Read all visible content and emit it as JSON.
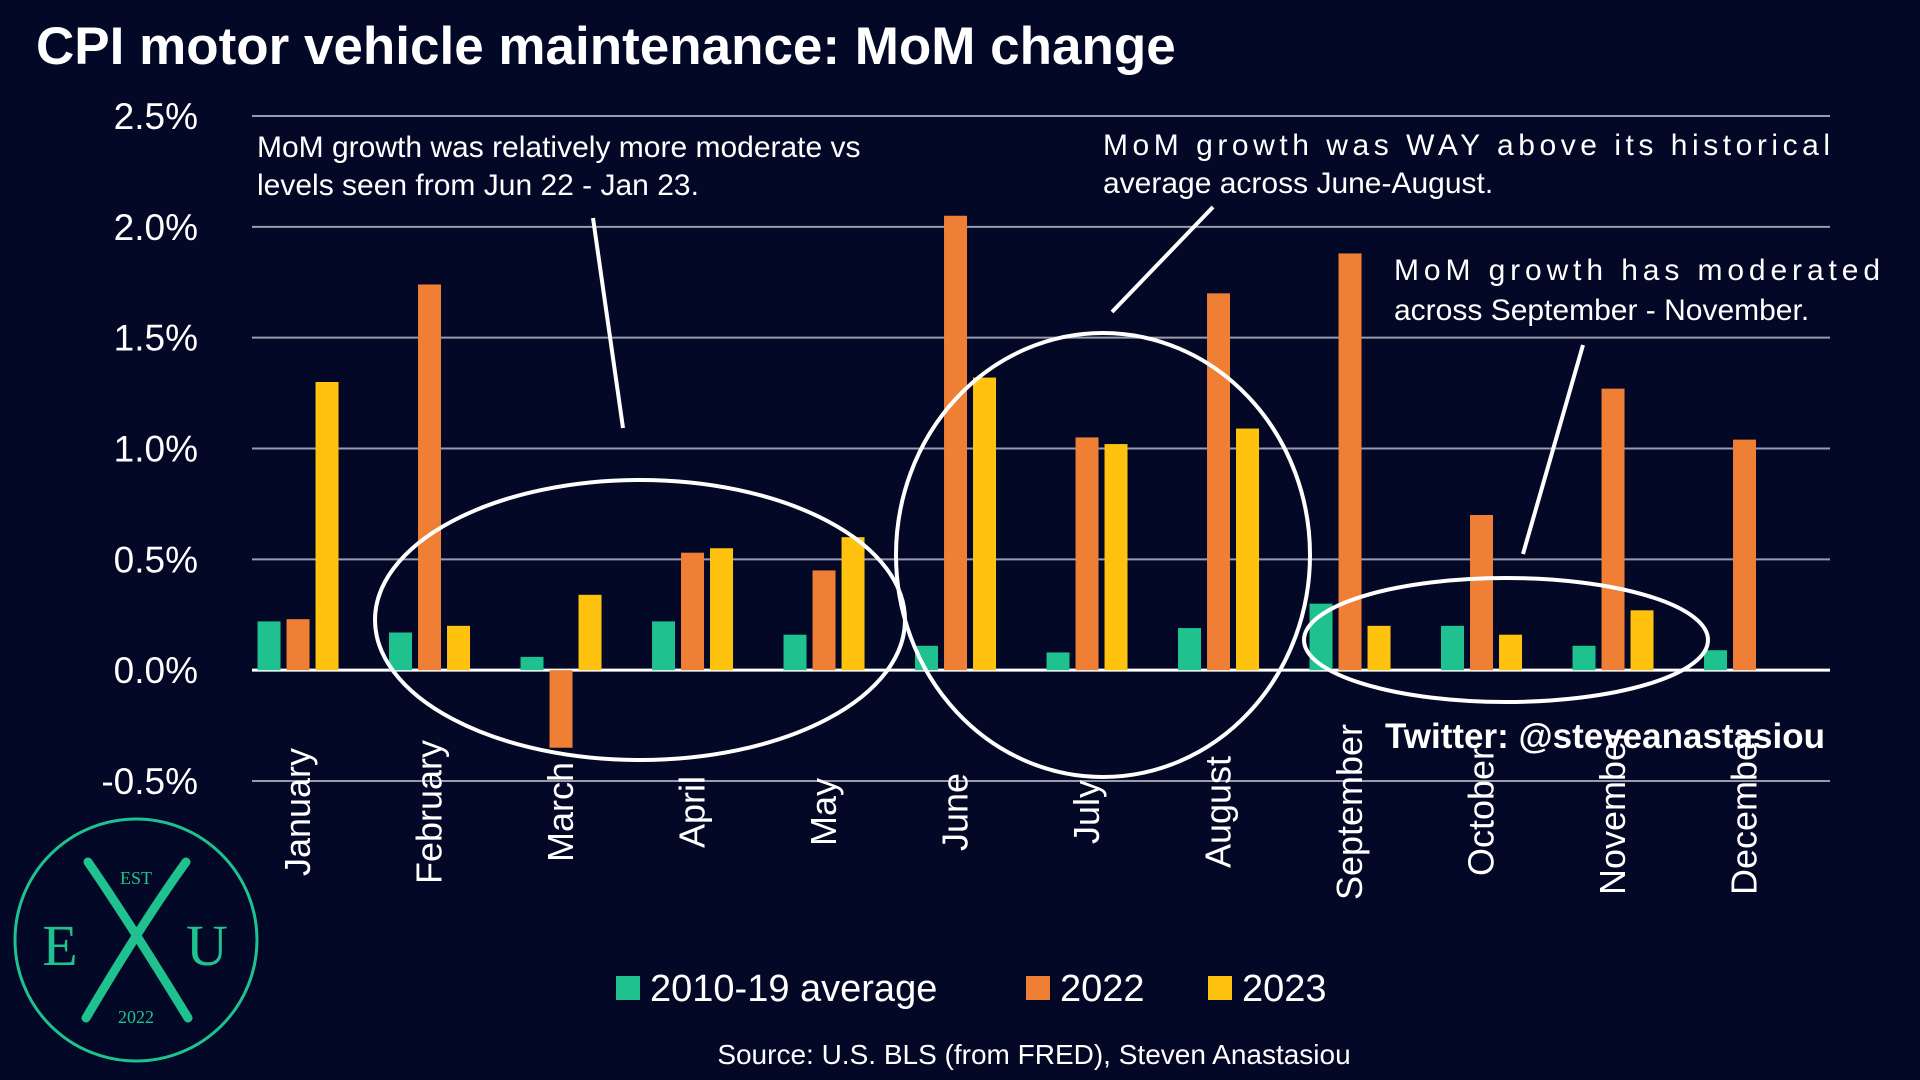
{
  "chart_data": {
    "type": "bar",
    "title": "CPI motor vehicle maintenance: MoM change",
    "categories": [
      "January",
      "February",
      "March",
      "April",
      "May",
      "June",
      "July",
      "August",
      "September",
      "October",
      "November",
      "December"
    ],
    "series": [
      {
        "name": "2010-19 average",
        "color": "#1fc28e",
        "values": [
          0.22,
          0.17,
          0.06,
          0.22,
          0.16,
          0.11,
          0.08,
          0.19,
          0.3,
          0.2,
          0.11,
          0.09
        ]
      },
      {
        "name": "2022",
        "color": "#ef7f34",
        "values": [
          0.23,
          1.74,
          -0.35,
          0.53,
          0.45,
          2.05,
          1.05,
          1.7,
          1.88,
          0.7,
          1.27,
          1.04
        ]
      },
      {
        "name": "2023",
        "color": "#ffc20e",
        "values": [
          1.3,
          0.2,
          0.34,
          0.55,
          0.6,
          1.32,
          1.02,
          1.09,
          0.2,
          0.16,
          0.27,
          null
        ]
      }
    ],
    "ylim": [
      -0.5,
      2.5
    ],
    "yticks": [
      2.5,
      2.0,
      1.5,
      1.0,
      0.5,
      0.0,
      -0.5
    ],
    "ytick_labels": [
      "2.5%",
      "2.0%",
      "1.5%",
      "1.0%",
      "0.5%",
      "0.0%",
      "-0.5%"
    ],
    "grid": true,
    "legend_position": "bottom",
    "annotations": [
      {
        "lines": [
          "MoM growth was relatively more moderate vs",
          "levels seen from Jun 22 - Jan 23."
        ]
      },
      {
        "lines": [
          "MoM  growth  was  WAY  above  its  historical",
          "average across June-August."
        ]
      },
      {
        "lines": [
          "MoM  growth  has  moderated",
          "across September - November."
        ]
      }
    ]
  },
  "twitter_handle": "Twitter: @steveanastasiou",
  "source": "Source: U.S. BLS (from FRED), Steven Anastasiou",
  "logo": {
    "top_text": "EST",
    "left_letter": "E",
    "right_letter": "U",
    "bottom_text": "2022",
    "color": "#1fc28e"
  }
}
